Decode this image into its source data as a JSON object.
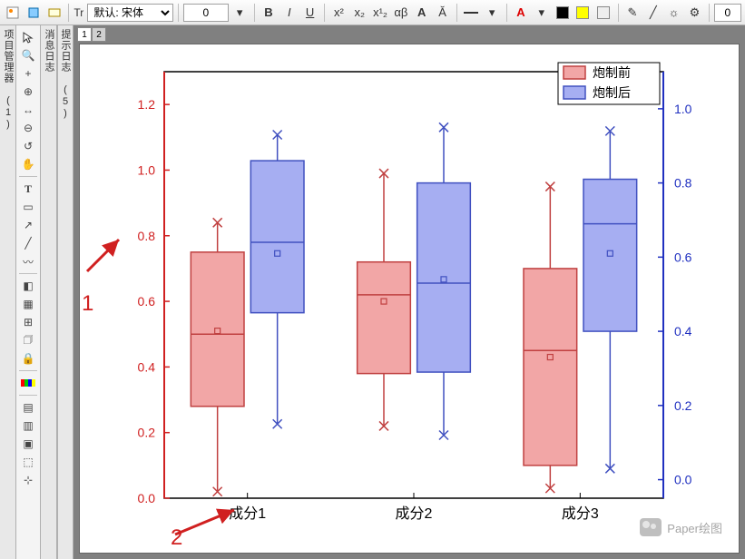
{
  "toolbar": {
    "font_label": "默认: 宋体",
    "font_prefix": "Tr",
    "size_value": "0",
    "bold": "B",
    "italic": "I",
    "underline": "U",
    "sup": "x²",
    "sub": "x₂",
    "greek": "αβ",
    "bigA": "A",
    "a_up": "Ă",
    "a_down": "A",
    "num_end": "0"
  },
  "side_panels": {
    "p1": "项目管理器 (1)",
    "p2": "消息日志",
    "p3": "提示日志 (5)"
  },
  "tabs": {
    "t1": "1",
    "t2": "2"
  },
  "chart": {
    "type": "boxplot",
    "background": "#ffffff",
    "axis_left_color": "#d02020",
    "axis_right_color": "#2030c0",
    "axis_bottom_color": "#000000",
    "axis_box_color": "#000000",
    "left_ticks": [
      0.0,
      0.2,
      0.4,
      0.6,
      0.8,
      1.0,
      1.2
    ],
    "left_ylim": [
      0.0,
      1.3
    ],
    "right_ticks": [
      0.0,
      0.2,
      0.4,
      0.6,
      0.8,
      1.0
    ],
    "right_ylim": [
      -0.05,
      1.1
    ],
    "x_labels": [
      "成分1",
      "成分2",
      "成分3"
    ],
    "legend": {
      "items": [
        {
          "label": "炮制前",
          "fill": "#f2a6a6",
          "stroke": "#c04040"
        },
        {
          "label": "炮制后",
          "fill": "#a6aef2",
          "stroke": "#4050c0"
        }
      ]
    },
    "tick_fontsize": 14,
    "label_fontsize": 16,
    "series": [
      {
        "color": "#f2a6a6",
        "stroke": "#c04040",
        "boxes": [
          {
            "x": 0,
            "wlo": 0.02,
            "q1": 0.28,
            "med": 0.5,
            "mean": 0.51,
            "q3": 0.75,
            "whi": 0.84
          },
          {
            "x": 1,
            "wlo": 0.22,
            "q1": 0.38,
            "med": 0.62,
            "mean": 0.6,
            "q3": 0.72,
            "whi": 0.99
          },
          {
            "x": 2,
            "wlo": 0.03,
            "q1": 0.1,
            "med": 0.45,
            "mean": 0.43,
            "q3": 0.7,
            "whi": 0.95
          }
        ]
      },
      {
        "color": "#a6aef2",
        "stroke": "#4050c0",
        "boxes": [
          {
            "x": 0,
            "wlo": 0.15,
            "q1": 0.45,
            "med": 0.64,
            "mean": 0.61,
            "q3": 0.86,
            "whi": 0.93
          },
          {
            "x": 1,
            "wlo": 0.12,
            "q1": 0.29,
            "med": 0.53,
            "mean": 0.54,
            "q3": 0.8,
            "whi": 0.95
          },
          {
            "x": 2,
            "wlo": 0.03,
            "q1": 0.4,
            "med": 0.69,
            "mean": 0.61,
            "q3": 0.81,
            "whi": 0.94
          }
        ]
      }
    ],
    "box_width": 0.32,
    "group_gap": 0.04
  },
  "annotations": {
    "a1": "1",
    "a2": "2"
  },
  "watermark": "Paper绘图"
}
